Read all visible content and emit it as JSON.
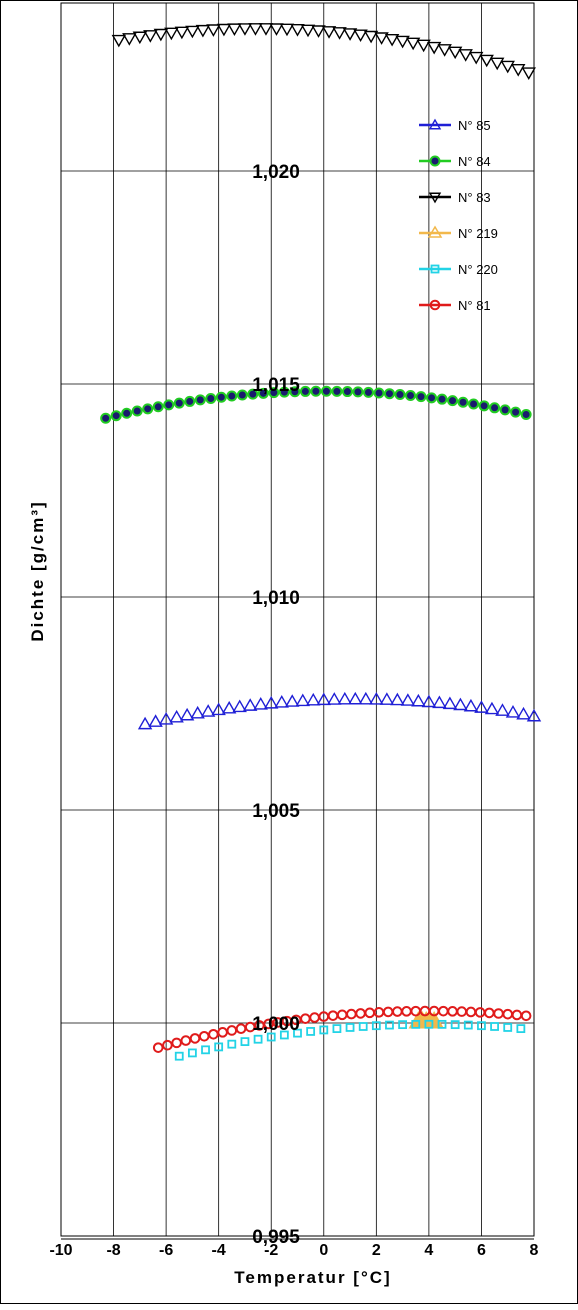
{
  "chart_data": {
    "type": "scatter",
    "xlabel": "Temperatur [°C]",
    "ylabel": "Dichte [g/cm³]",
    "xlim": [
      -10,
      8
    ],
    "ylim": [
      0.995,
      1.0235
    ],
    "grid": true,
    "legend_position": "top-right",
    "x_ticks": [
      {
        "value": -10,
        "label": "-10"
      },
      {
        "value": -8,
        "label": "-8"
      },
      {
        "value": -6,
        "label": "-6"
      },
      {
        "value": -4,
        "label": "-4"
      },
      {
        "value": -2,
        "label": "-2"
      },
      {
        "value": 0,
        "label": "0"
      },
      {
        "value": 2,
        "label": "2"
      },
      {
        "value": 4,
        "label": "4"
      },
      {
        "value": 6,
        "label": "6"
      },
      {
        "value": 8,
        "label": "8"
      }
    ],
    "y_ticks": [
      {
        "value": 0.995,
        "label": "0,995"
      },
      {
        "value": 1.0,
        "label": "1,000"
      },
      {
        "value": 1.005,
        "label": "1,005"
      },
      {
        "value": 1.01,
        "label": "1,010"
      },
      {
        "value": 1.015,
        "label": "1,015"
      },
      {
        "value": 1.02,
        "label": "1,020"
      }
    ],
    "series": [
      {
        "name": "N° 85",
        "color": "#1f1fd6",
        "marker": "triangle-up",
        "x_start": -6.8,
        "x_end": 8.0,
        "step": 0.4,
        "peak_x": 1.3,
        "peak_y": 1.0076,
        "curvature": 8.9e-06
      },
      {
        "name": "N° 84",
        "color": "#22cc22",
        "marker": "dot",
        "x_start": -8.3,
        "x_end": 8.0,
        "step": 0.4,
        "peak_x": 0.0,
        "peak_y": 1.01483,
        "curvature": 9.2e-06
      },
      {
        "name": "N° 83",
        "color": "#000000",
        "marker": "triangle-down",
        "x_start": -7.8,
        "x_end": 8.0,
        "step": 0.4,
        "peak_x": -2.5,
        "peak_y": 1.02335,
        "curvature": 9.8e-06
      },
      {
        "name": "N° 219",
        "color": "#f2b84b",
        "marker": "triangle-up",
        "x_start": 3.6,
        "x_end": 4.2,
        "step": 0.15,
        "peak_x": 4.0,
        "peak_y": 1.0,
        "curvature": 0.0
      },
      {
        "name": "N° 220",
        "color": "#22d3e6",
        "marker": "square",
        "x_start": -5.5,
        "x_end": 7.5,
        "step": 0.5,
        "peak_x": 4.0,
        "peak_y": 0.99997,
        "curvature": 8.3e-06
      },
      {
        "name": "N° 81",
        "color": "#e01b1b",
        "marker": "circle",
        "x_start": -6.3,
        "x_end": 8.0,
        "step": 0.35,
        "peak_x": 4.0,
        "peak_y": 1.00028,
        "curvature": 8.1e-06
      }
    ]
  }
}
